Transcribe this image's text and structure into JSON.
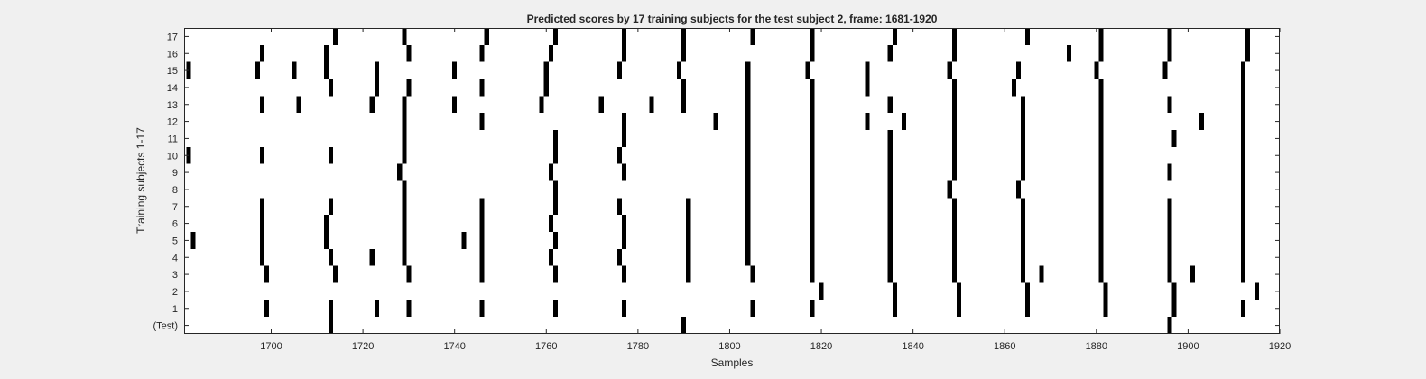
{
  "chart_data": {
    "type": "heatmap",
    "title": "Predicted scores by 17 training subjects for the test subject 2, frame: 1681-1920",
    "xlabel": "Samples",
    "ylabel": "Training subjects 1-17",
    "xlim": [
      1681,
      1920
    ],
    "x_ticks": [
      1700,
      1720,
      1740,
      1760,
      1780,
      1800,
      1820,
      1840,
      1860,
      1880,
      1900,
      1920
    ],
    "y_ticks": [
      "(Test)",
      "1",
      "2",
      "3",
      "4",
      "5",
      "6",
      "7",
      "8",
      "9",
      "10",
      "11",
      "12",
      "13",
      "14",
      "15",
      "16",
      "17"
    ],
    "grid": false,
    "colors": {
      "mark": "#000000",
      "background": "#ffffff"
    },
    "rows": [
      {
        "label": "(Test)",
        "x": [
          1713,
          1790,
          1896
        ]
      },
      {
        "label": "1",
        "x": [
          1699,
          1713,
          1723,
          1730,
          1746,
          1762,
          1777,
          1805,
          1818,
          1836,
          1850,
          1865,
          1882,
          1897,
          1912
        ]
      },
      {
        "label": "2",
        "x": [
          1820,
          1836,
          1850,
          1865,
          1882,
          1897,
          1915
        ]
      },
      {
        "label": "3",
        "x": [
          1699,
          1714,
          1730,
          1746,
          1762,
          1777,
          1791,
          1805,
          1818,
          1835,
          1849,
          1864,
          1868,
          1881,
          1896,
          1901,
          1912
        ]
      },
      {
        "label": "4",
        "x": [
          1698,
          1713,
          1722,
          1729,
          1746,
          1761,
          1776,
          1791,
          1804,
          1818,
          1835,
          1849,
          1864,
          1881,
          1896,
          1912
        ]
      },
      {
        "label": "5",
        "x": [
          1683,
          1698,
          1712,
          1729,
          1742,
          1746,
          1762,
          1777,
          1791,
          1804,
          1818,
          1835,
          1849,
          1864,
          1881,
          1896,
          1912
        ]
      },
      {
        "label": "6",
        "x": [
          1698,
          1712,
          1729,
          1746,
          1761,
          1777,
          1791,
          1804,
          1818,
          1835,
          1849,
          1864,
          1881,
          1896,
          1912
        ]
      },
      {
        "label": "7",
        "x": [
          1698,
          1713,
          1729,
          1746,
          1762,
          1776,
          1791,
          1804,
          1818,
          1835,
          1849,
          1864,
          1881,
          1896,
          1912
        ]
      },
      {
        "label": "8",
        "x": [
          1729,
          1762,
          1804,
          1818,
          1835,
          1848,
          1863,
          1881,
          1912
        ]
      },
      {
        "label": "9",
        "x": [
          1728,
          1761,
          1777,
          1804,
          1818,
          1835,
          1849,
          1864,
          1881,
          1896,
          1912
        ]
      },
      {
        "label": "10",
        "x": [
          1682,
          1698,
          1713,
          1729,
          1762,
          1776,
          1804,
          1818,
          1835,
          1849,
          1864,
          1881,
          1912
        ]
      },
      {
        "label": "11",
        "x": [
          1729,
          1762,
          1777,
          1804,
          1818,
          1835,
          1849,
          1864,
          1881,
          1897,
          1912
        ]
      },
      {
        "label": "12",
        "x": [
          1729,
          1746,
          1777,
          1797,
          1804,
          1818,
          1830,
          1838,
          1849,
          1864,
          1881,
          1903,
          1912
        ]
      },
      {
        "label": "13",
        "x": [
          1698,
          1706,
          1722,
          1729,
          1740,
          1759,
          1772,
          1783,
          1790,
          1804,
          1818,
          1835,
          1849,
          1864,
          1881,
          1896,
          1912
        ]
      },
      {
        "label": "14",
        "x": [
          1713,
          1723,
          1730,
          1746,
          1760,
          1790,
          1804,
          1818,
          1830,
          1849,
          1862,
          1881,
          1912
        ]
      },
      {
        "label": "15",
        "x": [
          1682,
          1697,
          1705,
          1712,
          1723,
          1740,
          1760,
          1776,
          1789,
          1804,
          1817,
          1830,
          1848,
          1863,
          1880,
          1895,
          1912
        ]
      },
      {
        "label": "16",
        "x": [
          1698,
          1712,
          1730,
          1746,
          1761,
          1777,
          1790,
          1818,
          1835,
          1849,
          1874,
          1881,
          1896,
          1913
        ]
      },
      {
        "label": "17",
        "x": [
          1714,
          1729,
          1747,
          1762,
          1777,
          1790,
          1805,
          1818,
          1836,
          1849,
          1865,
          1881,
          1896,
          1913
        ]
      }
    ]
  }
}
